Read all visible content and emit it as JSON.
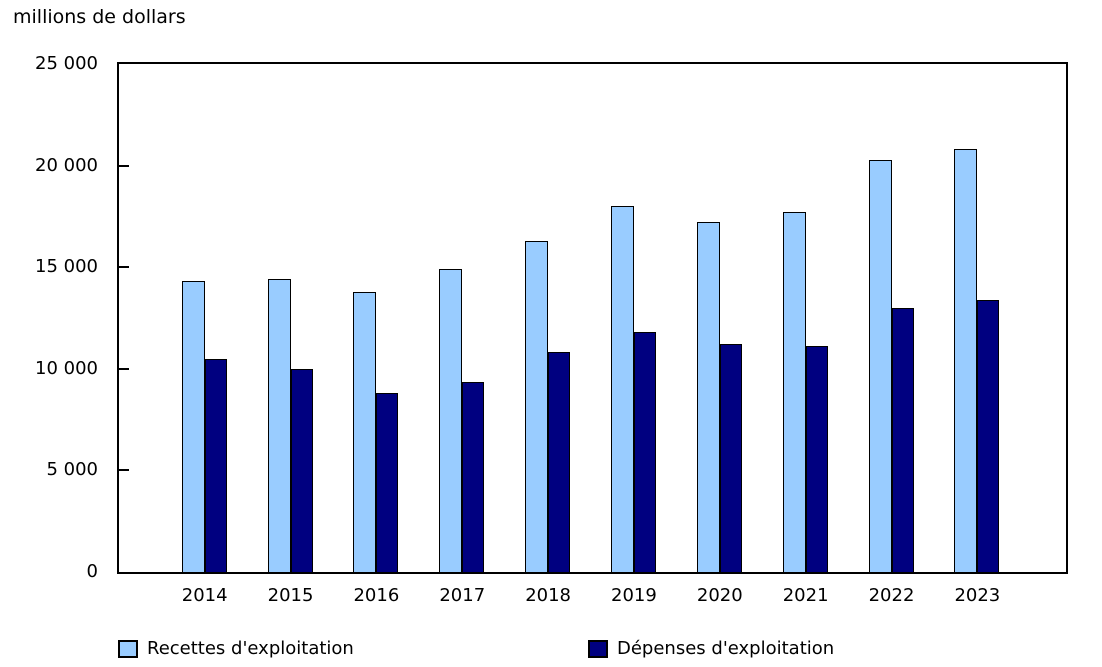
{
  "chart_data": {
    "type": "bar",
    "title": "millions de dollars",
    "categories": [
      "2014",
      "2015",
      "2016",
      "2017",
      "2018",
      "2019",
      "2020",
      "2021",
      "2022",
      "2023"
    ],
    "series": [
      {
        "name": "Recettes d'exploitation",
        "color": "#99CCFF",
        "values": [
          14300,
          14400,
          13800,
          14900,
          16300,
          18000,
          17200,
          17700,
          20300,
          20800
        ]
      },
      {
        "name": "Dépenses d'exploitation",
        "color": "#000080",
        "values": [
          10500,
          10000,
          8800,
          9350,
          10850,
          11800,
          11200,
          11100,
          13000,
          13400
        ]
      }
    ],
    "ylabel": "millions de dollars",
    "xlabel": "",
    "ylim": [
      0,
      25000
    ],
    "yticks": [
      0,
      5000,
      10000,
      15000,
      20000,
      25000
    ],
    "ytick_labels": [
      "0",
      "5 000",
      "10 000",
      "15 000",
      "20 000",
      "25 000"
    ],
    "legend_position": "bottom",
    "grid": false,
    "bar_outline_color": "#000000",
    "axis_color": "#000000"
  }
}
